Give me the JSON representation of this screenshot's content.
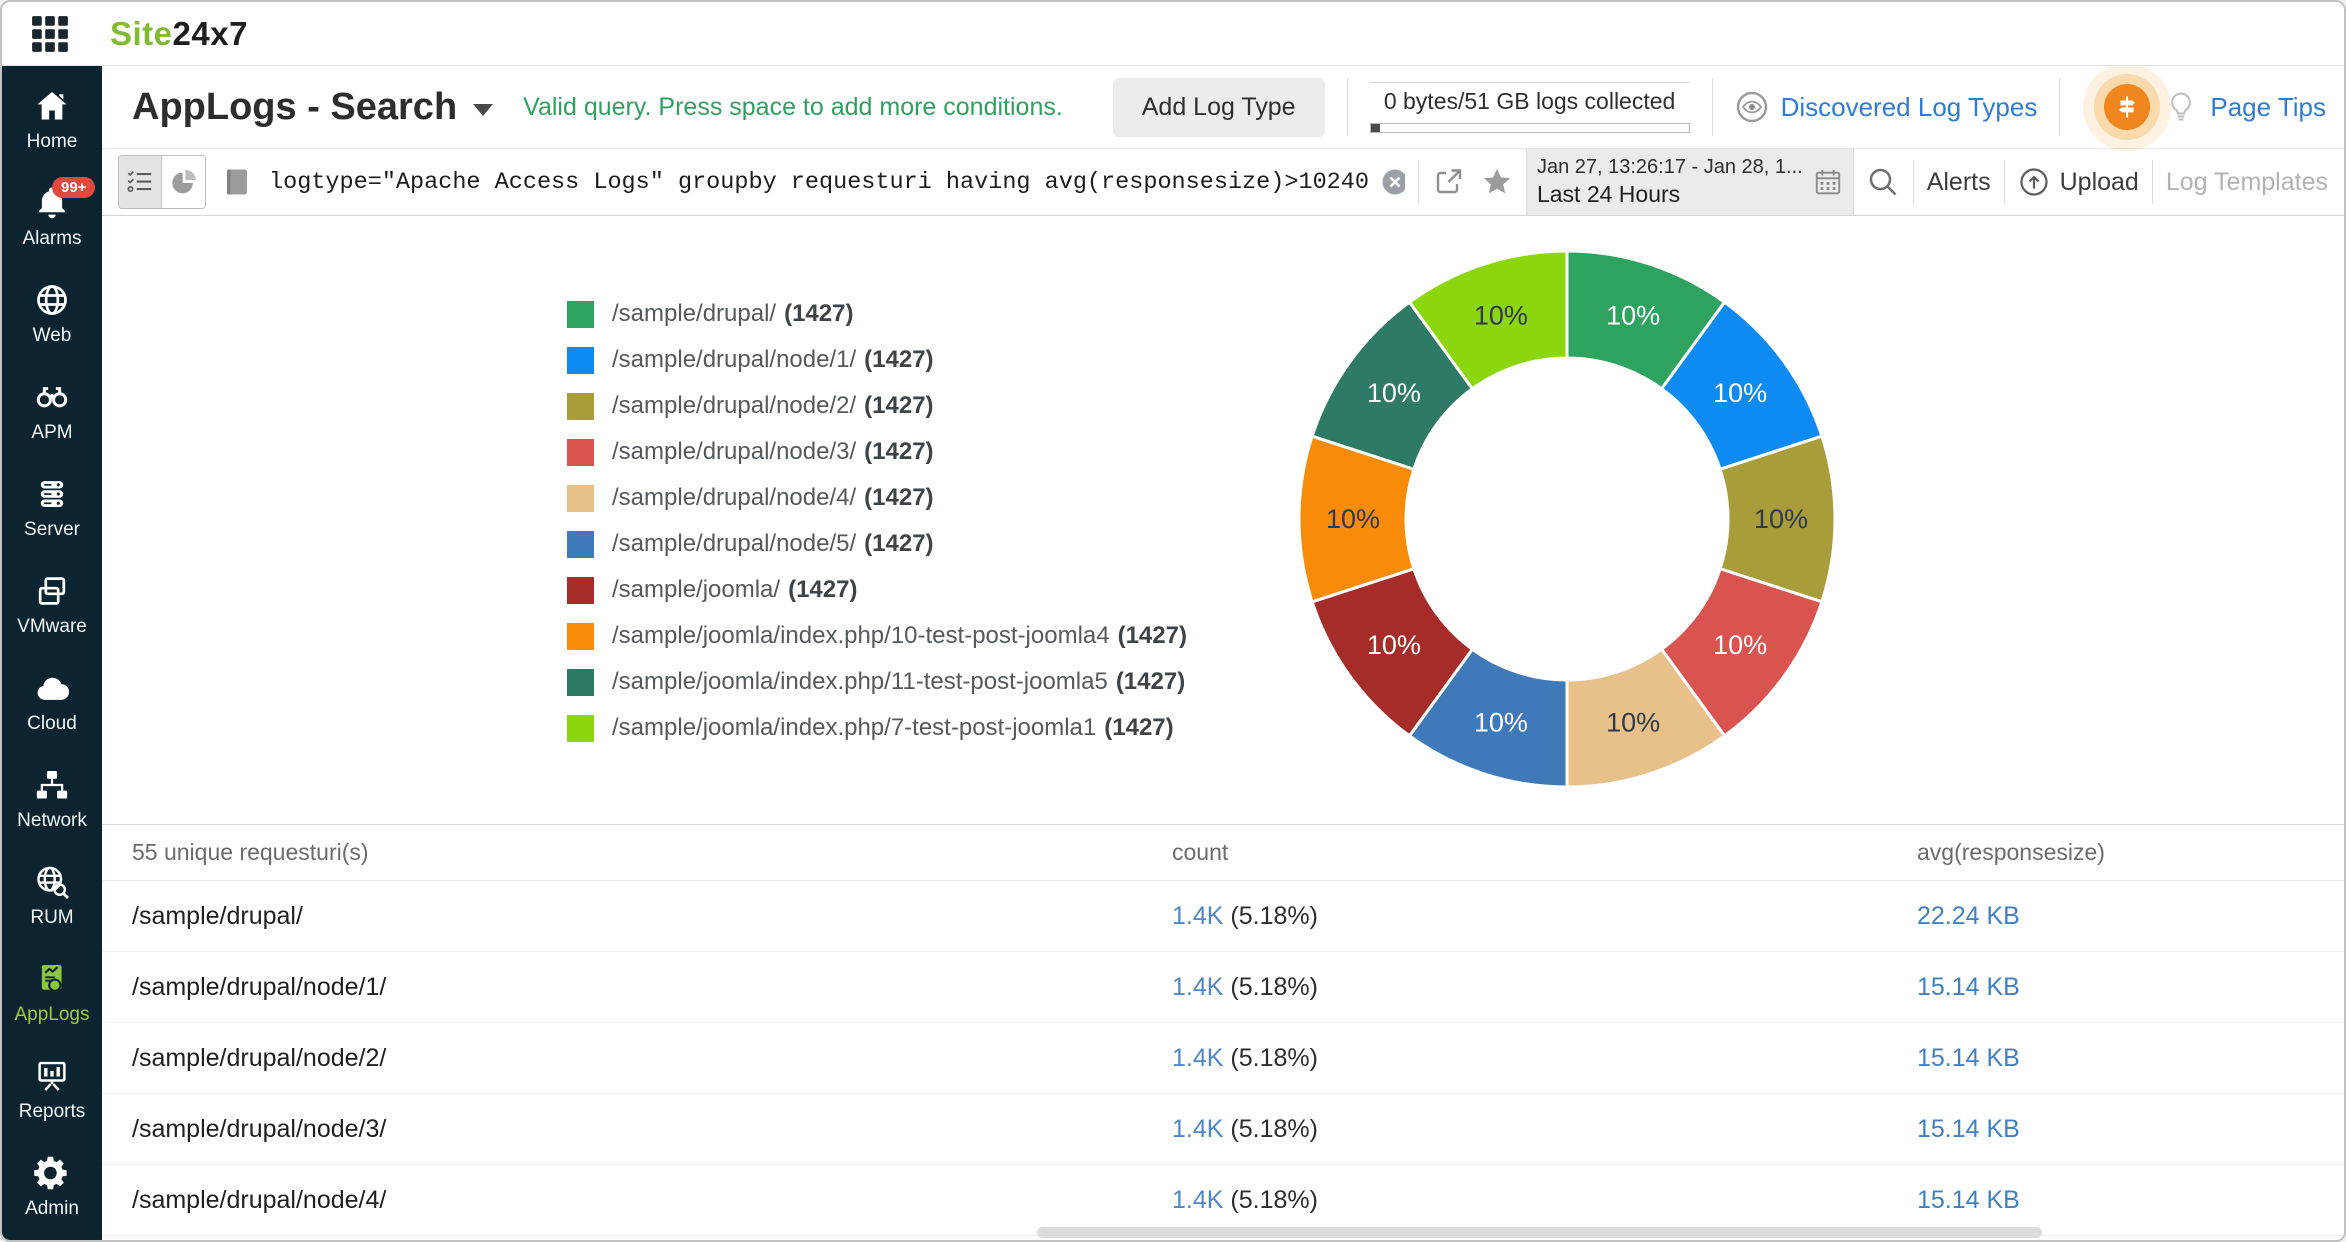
{
  "topbar": {
    "logo_site": "Site",
    "logo_24x7": "24x7"
  },
  "sidebar": {
    "items": [
      {
        "label": "Home",
        "icon": "home-icon"
      },
      {
        "label": "Alarms",
        "icon": "bell-icon",
        "badge": "99+"
      },
      {
        "label": "Web",
        "icon": "globe-icon"
      },
      {
        "label": "APM",
        "icon": "binoculars-icon"
      },
      {
        "label": "Server",
        "icon": "server-icon"
      },
      {
        "label": "VMware",
        "icon": "vmware-layers-icon"
      },
      {
        "label": "Cloud",
        "icon": "cloud-icon"
      },
      {
        "label": "Network",
        "icon": "network-icon"
      },
      {
        "label": "RUM",
        "icon": "rum-globe-search-icon"
      },
      {
        "label": "AppLogs",
        "icon": "applogs-icon",
        "active": true
      },
      {
        "label": "Reports",
        "icon": "reports-icon"
      },
      {
        "label": "Admin",
        "icon": "gear-icon"
      }
    ]
  },
  "header": {
    "title": "AppLogs - Search",
    "valid_message": "Valid query. Press space to add more conditions.",
    "add_log_type": "Add Log Type",
    "usage_text": "0 bytes/51 GB logs collected",
    "discovered_log_types": "Discovered Log Types",
    "page_tips": "Page Tips"
  },
  "querybar": {
    "query": "logtype=\"Apache Access Logs\" groupby requesturi having avg(responsesize)>10240",
    "help": "?",
    "date_range": "Jan 27, 13:26:17 - Jan 28, 1...",
    "date_preset": "Last 24 Hours",
    "alerts": "Alerts",
    "upload": "Upload",
    "log_templates": "Log Templates"
  },
  "chart_data": {
    "type": "pie",
    "subtype": "donut",
    "title": "",
    "legend_position": "left",
    "label_unit": "percent",
    "segments": [
      {
        "label": "/sample/drupal/",
        "count": 1427,
        "percent": 10,
        "display": "10%",
        "color": "#2ea25f",
        "label_color": "#ffffff"
      },
      {
        "label": "/sample/drupal/node/1/",
        "count": 1427,
        "percent": 10,
        "display": "10%",
        "color": "#0d8bf2",
        "label_color": "#ffffff"
      },
      {
        "label": "/sample/drupal/node/2/",
        "count": 1427,
        "percent": 10,
        "display": "10%",
        "color": "#a89c3b",
        "label_color": "#2e3a4d"
      },
      {
        "label": "/sample/drupal/node/3/",
        "count": 1427,
        "percent": 10,
        "display": "10%",
        "color": "#d9534f",
        "label_color": "#ffffff"
      },
      {
        "label": "/sample/drupal/node/4/",
        "count": 1427,
        "percent": 10,
        "display": "10%",
        "color": "#e7c189",
        "label_color": "#2e3a4d"
      },
      {
        "label": "/sample/drupal/node/5/",
        "count": 1427,
        "percent": 10,
        "display": "10%",
        "color": "#4079b9",
        "label_color": "#ffffff"
      },
      {
        "label": "/sample/joomla/",
        "count": 1427,
        "percent": 10,
        "display": "10%",
        "color": "#a62c2a",
        "label_color": "#ffffff"
      },
      {
        "label": "/sample/joomla/index.php/10-test-post-joomla4",
        "count": 1427,
        "percent": 10,
        "display": "10%",
        "color": "#f88b07",
        "label_color": "#2e3a4d"
      },
      {
        "label": "/sample/joomla/index.php/11-test-post-joomla5",
        "count": 1427,
        "percent": 10,
        "display": "10%",
        "color": "#2e7a66",
        "label_color": "#ffffff"
      },
      {
        "label": "/sample/joomla/index.php/7-test-post-joomla1",
        "count": 1427,
        "percent": 10,
        "display": "10%",
        "color": "#8cd60f",
        "label_color": "#2e3a4d"
      }
    ]
  },
  "table": {
    "col1_header": "55 unique requesturi(s)",
    "col2_header": "count",
    "col3_header": "avg(responsesize)",
    "rows": [
      {
        "requesturi": "/sample/drupal/",
        "count": "1.4K",
        "pct": "(5.18%)",
        "avg": "22.24 KB"
      },
      {
        "requesturi": "/sample/drupal/node/1/",
        "count": "1.4K",
        "pct": "(5.18%)",
        "avg": "15.14 KB"
      },
      {
        "requesturi": "/sample/drupal/node/2/",
        "count": "1.4K",
        "pct": "(5.18%)",
        "avg": "15.14 KB"
      },
      {
        "requesturi": "/sample/drupal/node/3/",
        "count": "1.4K",
        "pct": "(5.18%)",
        "avg": "15.14 KB"
      },
      {
        "requesturi": "/sample/drupal/node/4/",
        "count": "1.4K",
        "pct": "(5.18%)",
        "avg": "15.14 KB"
      }
    ]
  },
  "colors": {
    "accent_green": "#8cc63f",
    "link_blue": "#2f7cd1",
    "table_link_blue": "#4e87c9",
    "sidebar_bg": "#0c2430",
    "valid_green": "#2ea05f",
    "alarm_badge_red": "#e2483d",
    "page_tips_orange": "#f0861e"
  }
}
